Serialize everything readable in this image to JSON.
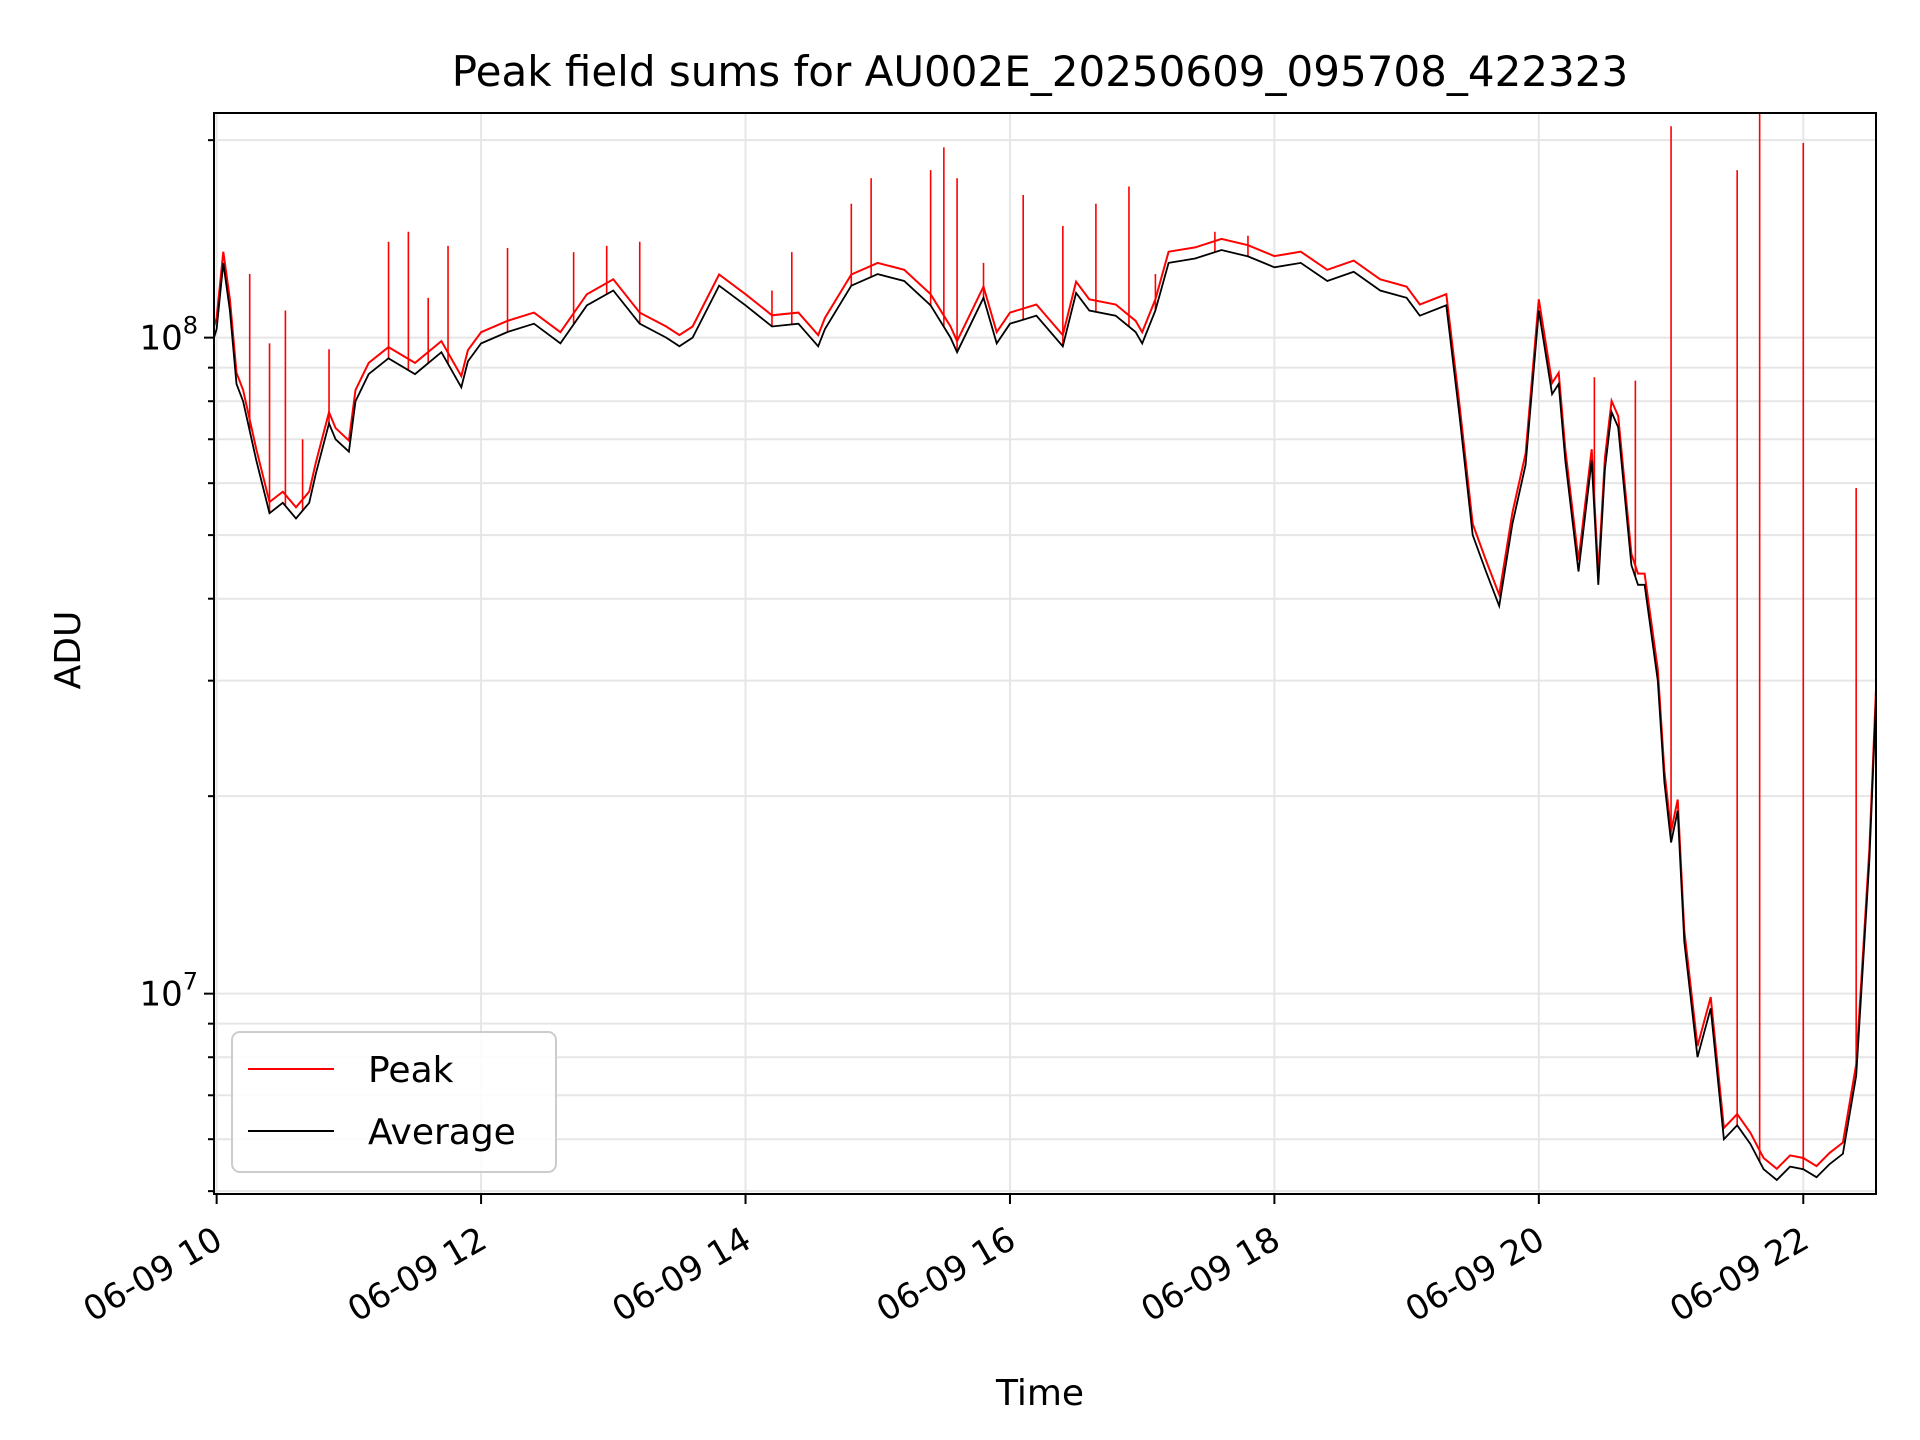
{
  "chart_data": {
    "type": "line",
    "title": "Peak field sums for AU002E_20250609_095708_422323",
    "xlabel": "Time",
    "ylabel": "ADU",
    "x_ticks": [
      "06-09 10",
      "06-09 12",
      "06-09 14",
      "06-09 16",
      "06-09 18",
      "06-09 20",
      "06-09 22"
    ],
    "x_range_hours": [
      9.98,
      22.55
    ],
    "y_scale": "log",
    "ylim": [
      4950000,
      220000000
    ],
    "y_ticks": [
      {
        "base": "10",
        "exp": "7",
        "value": 10000000
      },
      {
        "base": "10",
        "exp": "8",
        "value": 100000000
      }
    ],
    "grid": true,
    "legend": "lower-left",
    "series": [
      {
        "name": "Peak",
        "color": "#ff0000",
        "note_values": "baseline follows Average; vertical spikes at listed hours",
        "spikes": [
          [
            10.25,
            125000000
          ],
          [
            10.4,
            98000000
          ],
          [
            10.52,
            110000000
          ],
          [
            10.65,
            70000000
          ],
          [
            10.85,
            96000000
          ],
          [
            11.3,
            140000000
          ],
          [
            11.45,
            145000000
          ],
          [
            11.6,
            115000000
          ],
          [
            11.75,
            138000000
          ],
          [
            12.2,
            137000000
          ],
          [
            12.7,
            135000000
          ],
          [
            12.95,
            138000000
          ],
          [
            13.2,
            140000000
          ],
          [
            14.2,
            118000000
          ],
          [
            14.35,
            135000000
          ],
          [
            14.8,
            160000000
          ],
          [
            14.95,
            175000000
          ],
          [
            15.4,
            180000000
          ],
          [
            15.5,
            195000000
          ],
          [
            15.6,
            175000000
          ],
          [
            15.8,
            130000000
          ],
          [
            16.1,
            165000000
          ],
          [
            16.4,
            148000000
          ],
          [
            16.65,
            160000000
          ],
          [
            16.9,
            170000000
          ],
          [
            17.1,
            125000000
          ],
          [
            17.55,
            145000000
          ],
          [
            17.8,
            143000000
          ],
          [
            20.42,
            87000000
          ],
          [
            20.73,
            86000000
          ],
          [
            21.0,
            210000000
          ],
          [
            21.5,
            180000000
          ],
          [
            21.67,
            220000000
          ],
          [
            22.0,
            198000000
          ],
          [
            22.4,
            59000000
          ]
        ]
      },
      {
        "name": "Average",
        "color": "#000000",
        "x": [
          9.98,
          10.0,
          10.05,
          10.1,
          10.15,
          10.2,
          10.3,
          10.4,
          10.5,
          10.6,
          10.7,
          10.75,
          10.85,
          10.9,
          11.0,
          11.05,
          11.15,
          11.3,
          11.5,
          11.7,
          11.85,
          11.9,
          12.0,
          12.2,
          12.4,
          12.6,
          12.8,
          13.0,
          13.2,
          13.4,
          13.5,
          13.6,
          13.8,
          14.0,
          14.2,
          14.4,
          14.55,
          14.6,
          14.8,
          15.0,
          15.2,
          15.4,
          15.55,
          15.6,
          15.8,
          15.9,
          16.0,
          16.2,
          16.4,
          16.5,
          16.6,
          16.8,
          16.95,
          17.0,
          17.1,
          17.2,
          17.4,
          17.6,
          17.8,
          18.0,
          18.2,
          18.4,
          18.6,
          18.8,
          19.0,
          19.1,
          19.3,
          19.4,
          19.5,
          19.6,
          19.7,
          19.8,
          19.9,
          20.0,
          20.1,
          20.15,
          20.2,
          20.3,
          20.4,
          20.45,
          20.5,
          20.55,
          20.6,
          20.7,
          20.75,
          20.8,
          20.9,
          20.95,
          21.0,
          21.05,
          21.1,
          21.2,
          21.3,
          21.4,
          21.5,
          21.6,
          21.7,
          21.8,
          21.9,
          22.0,
          22.1,
          22.2,
          22.3,
          22.4,
          22.5,
          22.55
        ],
        "values": [
          100000000,
          103000000,
          130000000,
          110000000,
          85000000,
          80000000,
          65000000,
          54000000,
          56000000,
          53000000,
          56000000,
          62000000,
          74000000,
          70000000,
          67000000,
          80000000,
          88000000,
          93000000,
          88000000,
          95000000,
          84000000,
          92000000,
          98000000,
          102000000,
          105000000,
          98000000,
          112000000,
          118000000,
          105000000,
          100000000,
          97000000,
          100000000,
          120000000,
          112000000,
          104000000,
          105000000,
          97000000,
          103000000,
          120000000,
          125000000,
          122000000,
          112000000,
          100000000,
          95000000,
          115000000,
          98000000,
          105000000,
          108000000,
          97000000,
          117000000,
          110000000,
          108000000,
          102000000,
          98000000,
          110000000,
          130000000,
          132000000,
          136000000,
          133000000,
          128000000,
          130000000,
          122000000,
          126000000,
          118000000,
          115000000,
          108000000,
          112000000,
          76000000,
          50000000,
          44000000,
          39000000,
          52000000,
          64000000,
          110000000,
          82000000,
          85000000,
          65000000,
          44000000,
          65000000,
          42000000,
          63000000,
          77000000,
          73000000,
          45000000,
          42000000,
          42000000,
          30000000,
          21000000,
          17000000,
          19000000,
          12000000,
          8000000,
          9500000,
          6000000,
          6300000,
          5900000,
          5400000,
          5200000,
          5450000,
          5400000,
          5250000,
          5500000,
          5700000,
          7500000,
          16000000,
          28000000
        ]
      }
    ]
  }
}
